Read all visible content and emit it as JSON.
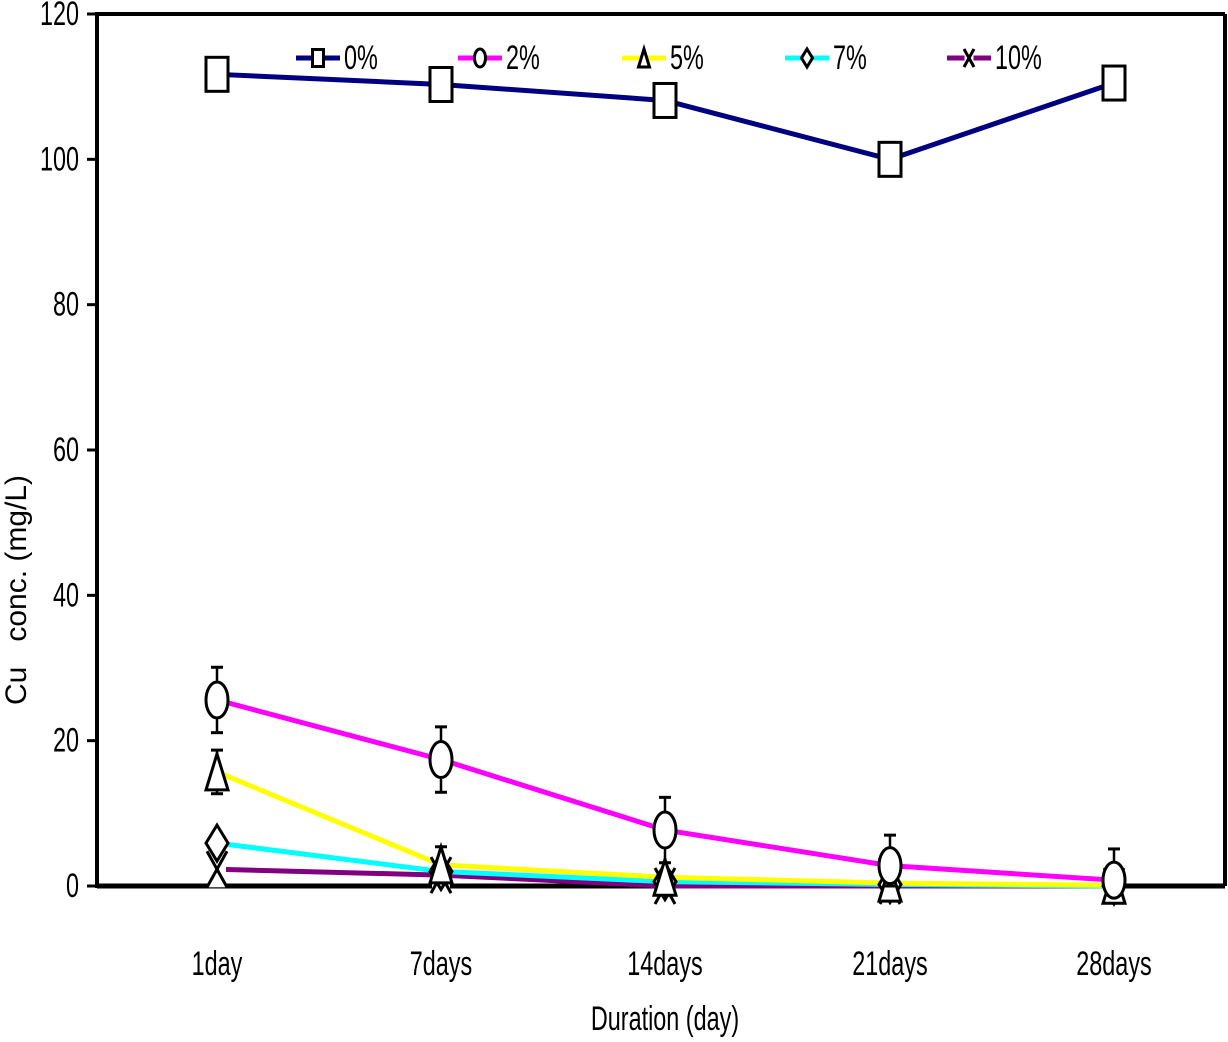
{
  "chart_data": {
    "type": "line",
    "title": "",
    "xlabel": "Duration (day)",
    "ylabel": "Cu   conc. (mg/L)",
    "categories": [
      "1day",
      "7days",
      "14days",
      "21days",
      "28days"
    ],
    "ylim": [
      0,
      120
    ],
    "yticks": [
      0,
      20,
      40,
      60,
      80,
      100,
      120
    ],
    "ytick_labels": [
      "0",
      "20",
      "40",
      "60",
      "80",
      "100",
      "120"
    ],
    "grid": false,
    "legend_position": "top",
    "series": [
      {
        "name": "0%",
        "color": "#000080",
        "marker": "square",
        "values": [
          111.7,
          110.3,
          108.1,
          100.0,
          110.5
        ],
        "errors": [
          0,
          0,
          0,
          0,
          0
        ]
      },
      {
        "name": "2%",
        "color": "#ff00ff",
        "marker": "circle",
        "values": [
          25.6,
          17.4,
          7.7,
          2.8,
          0.8
        ],
        "errors": [
          4.5,
          4.5,
          4.5,
          4.2,
          4.3
        ]
      },
      {
        "name": "5%",
        "color": "#ffff00",
        "marker": "triangle",
        "values": [
          15.7,
          2.9,
          1.2,
          0.4,
          0.1
        ],
        "errors": [
          3.0,
          2.5,
          0,
          0,
          0
        ]
      },
      {
        "name": "7%",
        "color": "#00ffff",
        "marker": "diamond",
        "values": [
          5.9,
          2.0,
          0.6,
          0.2,
          0.0
        ],
        "errors": [
          0,
          0,
          0,
          0,
          0
        ]
      },
      {
        "name": "10%",
        "color": "#800080",
        "marker": "x",
        "values": [
          2.3,
          1.5,
          0.0,
          0.0,
          0.0
        ],
        "errors": [
          0,
          0,
          0,
          0,
          0
        ]
      }
    ]
  }
}
